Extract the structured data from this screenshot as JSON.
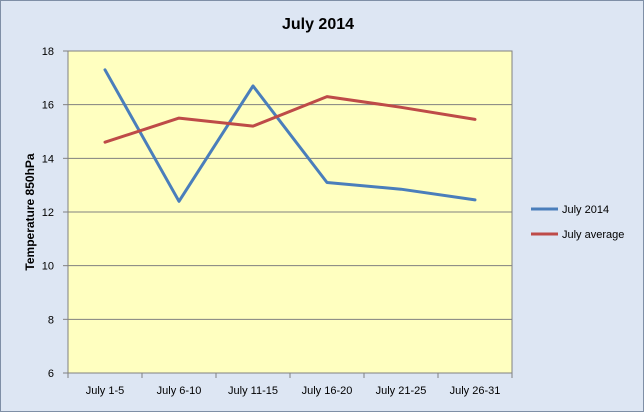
{
  "chart_data": {
    "type": "line",
    "title": "July 2014",
    "xlabel": "",
    "ylabel": "Temperature 850hPa",
    "categories": [
      "July 1-5",
      "July 6-10",
      "July 11-15",
      "July 16-20",
      "July 21-25",
      "July 26-31"
    ],
    "ylim": [
      6,
      18
    ],
    "yticks": [
      6,
      8,
      10,
      12,
      14,
      16,
      18
    ],
    "grid": true,
    "legend_position": "right",
    "series": [
      {
        "name": "July 2014",
        "color": "#4a7ebb",
        "values": [
          17.3,
          12.4,
          16.7,
          13.1,
          12.85,
          12.45
        ]
      },
      {
        "name": "July average",
        "color": "#be4b48",
        "values": [
          14.6,
          15.5,
          15.2,
          16.3,
          15.9,
          15.45
        ]
      }
    ],
    "colors": {
      "plot_background": "#ffffc0",
      "chart_background": "#dde6f3",
      "gridline": "#808080"
    }
  }
}
